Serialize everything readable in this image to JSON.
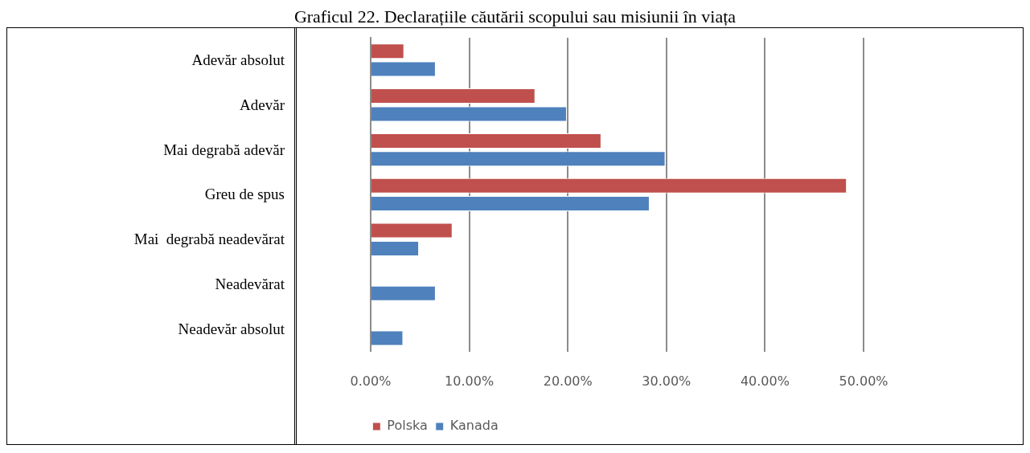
{
  "chart_data": {
    "type": "bar",
    "orientation": "horizontal",
    "title": "Graficul 22. Declarațiile căutării scopului sau misiunii în viața",
    "categories": [
      "Adevăr absolut",
      "Adevăr",
      "Mai degrabă adevăr",
      "Greu de spus",
      "Mai  degrabă neadevărat",
      "Neadevărat",
      "Neadevăr absolut"
    ],
    "series": [
      {
        "name": "Polska",
        "color": "#c0504d",
        "values": [
          3.4,
          16.7,
          23.4,
          48.3,
          8.3,
          0,
          0
        ]
      },
      {
        "name": "Kanada",
        "color": "#4f81bd",
        "values": [
          6.6,
          19.9,
          29.9,
          28.3,
          4.9,
          6.6,
          3.3
        ]
      }
    ],
    "xlim": [
      0,
      50
    ],
    "xticks": [
      {
        "value": 0,
        "label": "0.00%"
      },
      {
        "value": 10,
        "label": "10.00%"
      },
      {
        "value": 20,
        "label": "20.00%"
      },
      {
        "value": 30,
        "label": "30.00%"
      },
      {
        "value": 40,
        "label": "40.00%"
      },
      {
        "value": 50,
        "label": "50.00%"
      }
    ],
    "grid": "x",
    "legend": "bottom"
  }
}
